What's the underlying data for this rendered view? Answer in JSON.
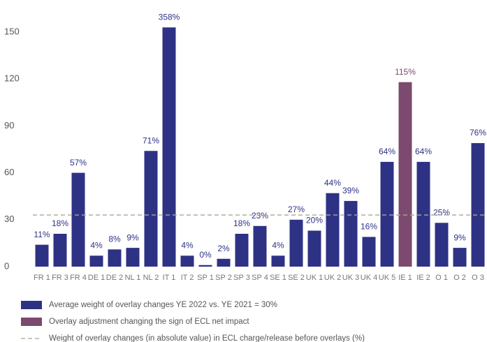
{
  "chart_data": {
    "type": "bar",
    "categories": [
      "FR 1",
      "FR 3",
      "FR 4",
      "DE 1",
      "DE 2",
      "NL 1",
      "NL 2",
      "IT 1",
      "IT 2",
      "SP 1",
      "SP 2",
      "SP 3",
      "SP 4",
      "SE 1",
      "SE 2",
      "UK 1",
      "UK 2",
      "UK 3",
      "UK 4",
      "UK 5",
      "IE 1",
      "IE 2",
      "O 1",
      "O 2",
      "O 3"
    ],
    "values": [
      14,
      21,
      60,
      7,
      11,
      12,
      74,
      153,
      7,
      1,
      5,
      21,
      26,
      7,
      30,
      23,
      47,
      42,
      19,
      67,
      118,
      67,
      28,
      12,
      79
    ],
    "data_labels": [
      "11%",
      "18%",
      "57%",
      "4%",
      "8%",
      "9%",
      "71%",
      "358%",
      "4%",
      "0%",
      "2%",
      "18%",
      "23%",
      "4%",
      "27%",
      "20%",
      "44%",
      "39%",
      "16%",
      "64%",
      "115%",
      "64%",
      "25%",
      "9%",
      "76%"
    ],
    "colors": [
      "#2e3285",
      "#2e3285",
      "#2e3285",
      "#2e3285",
      "#2e3285",
      "#2e3285",
      "#2e3285",
      "#2e3285",
      "#2e3285",
      "#2e3285",
      "#2e3285",
      "#2e3285",
      "#2e3285",
      "#2e3285",
      "#2e3285",
      "#2e3285",
      "#2e3285",
      "#2e3285",
      "#2e3285",
      "#2e3285",
      "#7b4a6e",
      "#2e3285",
      "#2e3285",
      "#2e3285",
      "#2e3285"
    ],
    "ylim": [
      0,
      150
    ],
    "yticks": [
      0,
      30,
      60,
      90,
      120,
      150
    ],
    "grid": false,
    "reference_line": {
      "value": 33,
      "color": "#a8a890"
    },
    "legend": [
      {
        "name": "Average weight of overlay changes YE 2022 vs. YE 2021 = 30%",
        "color": "#2e3285",
        "style": "box"
      },
      {
        "name": "Overlay adjustment changing the sign of ECL net  impact",
        "color": "#7b4a6e",
        "style": "box"
      },
      {
        "name": "Weight of overlay changes (in absolute value) in ECL charge/release before overlays (%)",
        "color": "#a8a890",
        "style": "dash"
      }
    ]
  }
}
